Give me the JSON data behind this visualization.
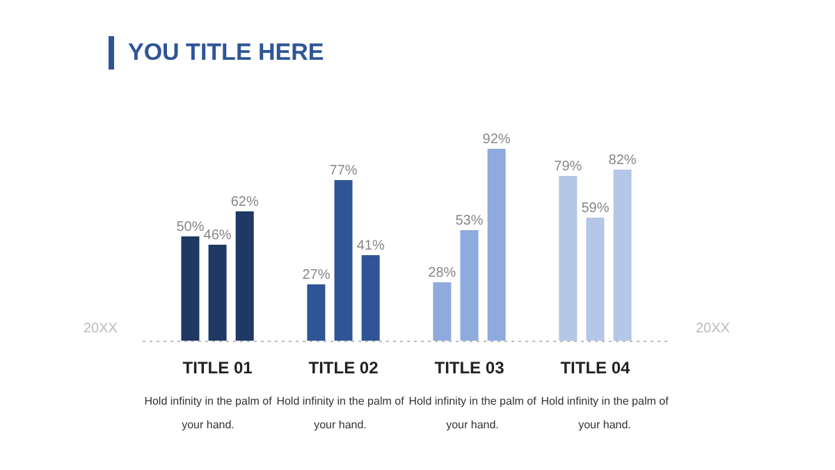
{
  "chart_data": {
    "type": "bar",
    "title": "YOU TITLE HERE",
    "categories": [
      "TITLE 01",
      "TITLE 02",
      "TITLE 03",
      "TITLE 04"
    ],
    "series": [
      {
        "colors": [
          "#1f3864",
          "#2f5597",
          "#8faadc",
          "#b4c7e7"
        ],
        "values": [
          50,
          27,
          28,
          79
        ],
        "value_labels": [
          "50%",
          "27%",
          "28%",
          "79%"
        ]
      },
      {
        "colors": [
          "#1f3864",
          "#2f5597",
          "#8faadc",
          "#b4c7e7"
        ],
        "values": [
          46,
          77,
          53,
          59
        ],
        "value_labels": [
          "46%",
          "77%",
          "53%",
          "59%"
        ]
      },
      {
        "colors": [
          "#1f3864",
          "#2f5597",
          "#8faadc",
          "#b4c7e7"
        ],
        "values": [
          62,
          41,
          92,
          82
        ],
        "value_labels": [
          "62%",
          "41%",
          "92%",
          "82%"
        ]
      }
    ],
    "annotations": [
      "Hold infinity in the palm of your hand.",
      "Hold infinity in the palm of your hand.",
      "Hold infinity in the palm of your hand.",
      "Hold infinity in the palm of your hand.",
      "20XX",
      "20XX"
    ]
  }
}
